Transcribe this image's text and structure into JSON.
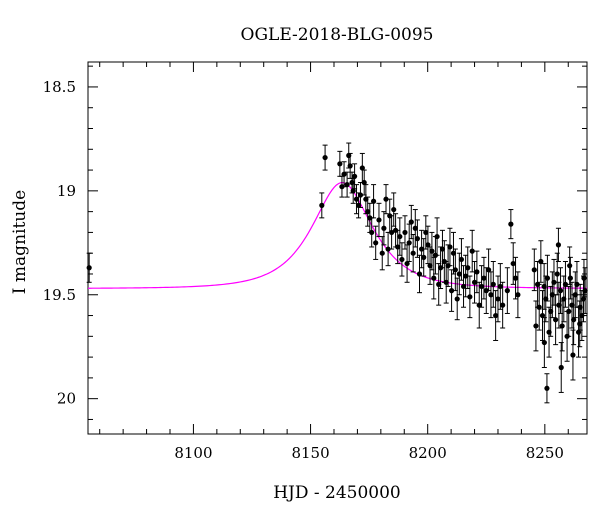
{
  "chart_data": {
    "type": "scatter",
    "title": "OGLE-2018-BLG-0095",
    "xlabel": "HJD - 2450000",
    "ylabel": "I magnitude",
    "xlim": [
      8055,
      8268
    ],
    "ylim": [
      20.17,
      18.38
    ],
    "y_inverted": true,
    "xticks": [
      8100,
      8150,
      8200,
      8250
    ],
    "yticks": [
      18.5,
      19,
      19.5,
      20
    ],
    "ytick_labels": [
      "18.5",
      "19",
      "19.5",
      "20"
    ],
    "grid": false,
    "colors": {
      "points": "#000000",
      "model": "#ff00ff",
      "axes": "#000000"
    },
    "series": [
      {
        "kind": "points_with_errorbars",
        "x": [
          8055.5,
          8154.8,
          8156.2,
          8162.5,
          8163.4,
          8164.3,
          8165.6,
          8166.3,
          8166.9,
          8167.7,
          8168.2,
          8168.8,
          8169.6,
          8170.5,
          8171.3,
          8172.1,
          8172.9,
          8173.6,
          8174.4,
          8175.3,
          8176.1,
          8176.9,
          8177.8,
          8179.2,
          8180.6,
          8181.3,
          8182.2,
          8183.1,
          8183.8,
          8184.6,
          8185.5,
          8186.3,
          8187.2,
          8188.1,
          8189.0,
          8190.3,
          8191.2,
          8192.1,
          8193.0,
          8193.8,
          8194.7,
          8195.6,
          8196.5,
          8197.4,
          8198.3,
          8199.2,
          8200.1,
          8201.0,
          8201.8,
          8202.6,
          8203.3,
          8204.0,
          8204.7,
          8205.5,
          8206.3,
          8207.1,
          8207.9,
          8208.7,
          8209.5,
          8210.2,
          8211.0,
          8211.8,
          8212.6,
          8213.5,
          8214.4,
          8215.3,
          8216.2,
          8217.1,
          8218.0,
          8219.0,
          8220.0,
          8221.0,
          8222.0,
          8223.0,
          8224.0,
          8225.0,
          8226.0,
          8227.0,
          8228.0,
          8229.0,
          8230.0,
          8231.0,
          8232.0,
          8234.0,
          8235.5,
          8236.5,
          8237.5,
          8238.5,
          8245.5,
          8246.2,
          8246.9,
          8247.6,
          8248.3,
          8249.0,
          8249.7,
          8250.4,
          8251.1,
          8251.8,
          8252.5,
          8253.2,
          8253.9,
          8254.6,
          8255.3,
          8256.0,
          8256.7,
          8257.4,
          8258.1,
          8258.8,
          8259.5,
          8260.2,
          8260.9,
          8261.6,
          8262.3,
          8263.0,
          8263.7,
          8264.4,
          8265.1,
          8265.8,
          8266.5,
          8267.2,
          8249.8,
          8257.0,
          8262.0,
          8264.9,
          8250.9,
          8255.8,
          8260.6,
          8266.7
        ],
        "y": [
          19.37,
          19.07,
          18.84,
          18.87,
          18.98,
          18.92,
          18.97,
          18.83,
          18.88,
          18.96,
          19.0,
          18.93,
          19.04,
          19.07,
          19.02,
          18.89,
          18.96,
          19.04,
          19.1,
          19.13,
          19.2,
          19.05,
          19.25,
          19.14,
          19.3,
          19.18,
          19.04,
          19.28,
          19.12,
          19.2,
          19.09,
          19.19,
          19.27,
          19.22,
          19.33,
          19.2,
          19.35,
          19.25,
          19.15,
          19.3,
          19.18,
          19.23,
          19.4,
          19.28,
          19.32,
          19.2,
          19.26,
          19.36,
          19.29,
          19.42,
          19.31,
          19.22,
          19.45,
          19.37,
          19.28,
          19.34,
          19.44,
          19.36,
          19.27,
          19.48,
          19.3,
          19.38,
          19.52,
          19.4,
          19.33,
          19.46,
          19.41,
          19.37,
          19.51,
          19.29,
          19.44,
          19.39,
          19.55,
          19.46,
          19.42,
          19.48,
          19.38,
          19.5,
          19.45,
          19.6,
          19.52,
          19.46,
          19.55,
          19.48,
          19.16,
          19.35,
          19.42,
          19.5,
          19.38,
          19.65,
          19.45,
          19.56,
          19.34,
          19.6,
          19.46,
          19.52,
          19.42,
          19.68,
          19.58,
          19.5,
          19.44,
          19.62,
          19.4,
          19.55,
          19.48,
          19.65,
          19.52,
          19.45,
          19.7,
          19.58,
          19.42,
          19.55,
          19.62,
          19.5,
          19.45,
          19.68,
          19.56,
          19.6,
          19.52,
          19.48,
          19.73,
          19.85,
          19.79,
          19.64,
          19.95,
          19.26,
          19.36,
          19.42
        ],
        "yerr": [
          0.07,
          0.06,
          0.06,
          0.06,
          0.05,
          0.06,
          0.06,
          0.06,
          0.06,
          0.05,
          0.06,
          0.06,
          0.07,
          0.06,
          0.06,
          0.07,
          0.06,
          0.07,
          0.07,
          0.07,
          0.07,
          0.08,
          0.08,
          0.08,
          0.08,
          0.08,
          0.07,
          0.08,
          0.08,
          0.08,
          0.08,
          0.08,
          0.08,
          0.09,
          0.08,
          0.08,
          0.09,
          0.09,
          0.08,
          0.09,
          0.09,
          0.09,
          0.09,
          0.09,
          0.09,
          0.08,
          0.09,
          0.09,
          0.09,
          0.1,
          0.09,
          0.09,
          0.1,
          0.1,
          0.09,
          0.1,
          0.1,
          0.1,
          0.09,
          0.1,
          0.1,
          0.1,
          0.1,
          0.1,
          0.1,
          0.1,
          0.1,
          0.1,
          0.1,
          0.1,
          0.1,
          0.1,
          0.11,
          0.1,
          0.1,
          0.11,
          0.1,
          0.11,
          0.11,
          0.12,
          0.11,
          0.11,
          0.11,
          0.11,
          0.07,
          0.1,
          0.1,
          0.11,
          0.1,
          0.12,
          0.11,
          0.11,
          0.1,
          0.12,
          0.11,
          0.11,
          0.11,
          0.12,
          0.12,
          0.11,
          0.11,
          0.12,
          0.1,
          0.11,
          0.11,
          0.12,
          0.11,
          0.11,
          0.12,
          0.12,
          0.1,
          0.11,
          0.12,
          0.11,
          0.11,
          0.12,
          0.11,
          0.12,
          0.11,
          0.11,
          0.12,
          0.12,
          0.12,
          0.11,
          0.07,
          0.08,
          0.09,
          0.09
        ]
      },
      {
        "kind": "model_curve",
        "t0": 8163.5,
        "tE": 18.0,
        "u0": 0.75,
        "base_mag": 19.47,
        "peak_mag": 18.96
      }
    ]
  }
}
